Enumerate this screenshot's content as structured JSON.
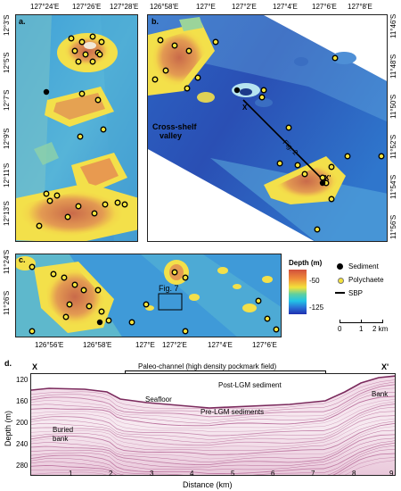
{
  "panel_a": {
    "label": "a.",
    "lon_ticks": [
      "127°24'E",
      "127°26'E",
      "127°28'E"
    ],
    "lat_ticks": [
      "12°3'S",
      "12°5'S",
      "12°7'S",
      "12°9'S",
      "12°11'S",
      "12°13'S"
    ]
  },
  "panel_b": {
    "label": "b.",
    "lon_ticks": [
      "126°58'E",
      "127°E",
      "127°2'E",
      "127°4'E",
      "127°6'E",
      "127°8'E"
    ],
    "lat_ticks": [
      "11°46'S",
      "11°48'S",
      "11°50'S",
      "11°52'S",
      "11°54'S",
      "11°56'S"
    ],
    "valley_label_1": "Cross-shelf",
    "valley_label_2": "valley",
    "fig2_label": "Fig. 2",
    "profile_start": "X",
    "profile_end": "X'"
  },
  "panel_c": {
    "label": "c.",
    "lon_ticks": [
      "126°56'E",
      "126°58'E",
      "127°E",
      "127°2'E",
      "127°4'E",
      "127°6'E"
    ],
    "lat_ticks": [
      "11°24'S",
      "11°26'S"
    ],
    "fig7_label": "Fig. 7"
  },
  "legend": {
    "depth_title": "Depth (m)",
    "depth_max": "-50",
    "depth_min": "-125",
    "sediment": "Sediment",
    "polychaete": "Polychaete",
    "sbp": "SBP",
    "scale_ticks": [
      "0",
      "1",
      "2 km"
    ]
  },
  "panel_d": {
    "label": "d.",
    "start_label": "X",
    "end_label": "X'",
    "channel_label": "Paleo-channel (high density pockmark field)",
    "seafloor": "Seafloor",
    "post_lgm": "Post-LGM sediment",
    "pre_lgm": "Pre-LGM sediments",
    "buried_bank_1": "Buried",
    "buried_bank_2": "bank",
    "bank": "Bank",
    "ylabel": "Depth (m)",
    "xlabel": "Distance (km)",
    "y_ticks": [
      "120",
      "160",
      "200",
      "240",
      "280"
    ],
    "x_ticks": [
      "1",
      "2",
      "3",
      "4",
      "5",
      "6",
      "7",
      "8",
      "9"
    ]
  },
  "colors": {
    "depth_shallow": "#d2503c",
    "depth_mid": "#f2e23a",
    "depth_deep": "#1f2fb0",
    "sbp_track": "#000000",
    "polychaete": "#f4e23c",
    "seismic": "#a5467f"
  }
}
